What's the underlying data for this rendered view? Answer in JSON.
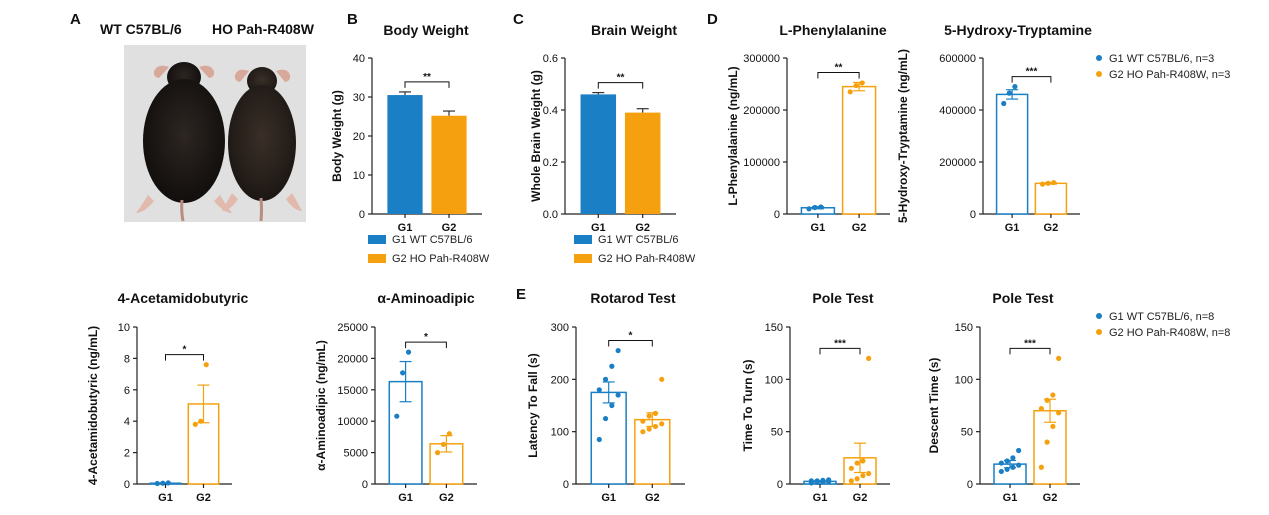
{
  "colors": {
    "g1": "#1a7fc4",
    "g2": "#f5a10f",
    "axis": "#222222"
  },
  "panel_labels": {
    "a": "A",
    "b": "B",
    "c": "C",
    "d": "D",
    "e": "E"
  },
  "photo": {
    "left_caption": "WT C57BL/6",
    "right_caption": "HO Pah-R408W"
  },
  "legends": {
    "b": [
      "G1 WT C57BL/6",
      "G2 HO Pah-R408W"
    ],
    "c": [
      "G1 WT C57BL/6",
      "G2 HO Pah-R408W"
    ],
    "d": [
      "G1 WT C57BL/6, n=3",
      "G2 HO Pah-R408W, n=3"
    ],
    "e": [
      "G1 WT C57BL/6, n=8",
      "G2 HO Pah-R408W, n=8"
    ]
  },
  "chart_data": [
    {
      "type": "bar",
      "style": "solid",
      "title": "Body Weight",
      "ylabel": "Body Weight (g)",
      "categories": [
        "G1",
        "G2"
      ],
      "values": [
        30.5,
        25.2
      ],
      "errors": [
        0.8,
        1.2
      ],
      "ylim": [
        0,
        40
      ],
      "yticks": [
        "0",
        "10",
        "20",
        "30",
        "40"
      ],
      "significance": "**",
      "points": [
        [],
        []
      ]
    },
    {
      "type": "bar",
      "style": "solid",
      "title": "Brain Weight",
      "ylabel": "Whole Brain Weight (g)",
      "categories": [
        "G1",
        "G2"
      ],
      "values": [
        0.46,
        0.39
      ],
      "errors": [
        0.007,
        0.015
      ],
      "ylim": [
        0,
        0.6
      ],
      "yticks": [
        "0.0",
        "0.2",
        "0.4",
        "0.6"
      ],
      "significance": "**",
      "points": [
        [],
        []
      ]
    },
    {
      "type": "bar",
      "style": "hollow",
      "title": "L-Phenylalanine",
      "ylabel": "L-Phenylalanine (ng/mL)",
      "categories": [
        "G1",
        "G2"
      ],
      "values": [
        12000,
        245000
      ],
      "errors": [
        2000,
        8000
      ],
      "ylim": [
        0,
        300000
      ],
      "yticks": [
        "0",
        "100000",
        "200000",
        "300000"
      ],
      "significance": "**",
      "points": [
        [
          10000,
          12500,
          13500
        ],
        [
          235000,
          247000,
          252000
        ]
      ]
    },
    {
      "type": "bar",
      "style": "hollow",
      "title": "5-Hydroxy-Tryptamine",
      "ylabel": "5-Hydroxy-Tryptamine (ng/mL)",
      "categories": [
        "G1",
        "G2"
      ],
      "values": [
        460000,
        118000
      ],
      "errors": [
        18000,
        3000
      ],
      "ylim": [
        0,
        600000
      ],
      "yticks": [
        "0",
        "200000",
        "400000",
        "600000"
      ],
      "significance": "***",
      "points": [
        [
          425000,
          465000,
          490000
        ],
        [
          115000,
          118000,
          121000
        ]
      ]
    },
    {
      "type": "bar",
      "style": "hollow",
      "title": "4-Acetamidobutyric",
      "ylabel": "4-Acetamidobutyric (ng/mL)",
      "categories": [
        "G1",
        "G2"
      ],
      "values": [
        0.05,
        5.1
      ],
      "errors": [
        0.02,
        1.2
      ],
      "ylim": [
        0,
        10
      ],
      "yticks": [
        "0",
        "2",
        "4",
        "6",
        "8",
        "10"
      ],
      "significance": "*",
      "points": [
        [
          0.03,
          0.05,
          0.07
        ],
        [
          3.8,
          4.0,
          7.6
        ]
      ]
    },
    {
      "type": "bar",
      "style": "hollow",
      "title": "α-Aminoadipic",
      "ylabel": "α-Aminoadipic (ng/mL)",
      "categories": [
        "G1",
        "G2"
      ],
      "values": [
        16300,
        6400
      ],
      "errors": [
        3200,
        1300
      ],
      "ylim": [
        0,
        25000
      ],
      "yticks": [
        "0",
        "5000",
        "10000",
        "15000",
        "20000",
        "25000"
      ],
      "significance": "*",
      "points": [
        [
          10800,
          17700,
          21000
        ],
        [
          5000,
          6300,
          8000
        ]
      ]
    },
    {
      "type": "bar",
      "style": "hollow",
      "title": "Rotarod Test",
      "ylabel": "Latency To Fall (s)",
      "categories": [
        "G1",
        "G2"
      ],
      "values": [
        175,
        123
      ],
      "errors": [
        20,
        13
      ],
      "ylim": [
        0,
        300
      ],
      "yticks": [
        "0",
        "100",
        "200",
        "300"
      ],
      "significance": "*",
      "points": [
        [
          85,
          125,
          150,
          170,
          180,
          200,
          225,
          255
        ],
        [
          100,
          105,
          110,
          115,
          120,
          130,
          135,
          200
        ]
      ]
    },
    {
      "type": "bar",
      "style": "hollow",
      "title": "Pole Test",
      "ylabel": "Time To Turn (s)",
      "categories": [
        "G1",
        "G2"
      ],
      "values": [
        2.5,
        25
      ],
      "errors": [
        0.6,
        14
      ],
      "ylim": [
        0,
        150
      ],
      "yticks": [
        "0",
        "50",
        "100",
        "150"
      ],
      "significance": "***",
      "points": [
        [
          1,
          1.5,
          2,
          2,
          3,
          3,
          3.5,
          4
        ],
        [
          3,
          5,
          8,
          10,
          15,
          20,
          22,
          120
        ]
      ]
    },
    {
      "type": "bar",
      "style": "hollow",
      "title": "Pole Test",
      "ylabel": "Descent Time (s)",
      "categories": [
        "G1",
        "G2"
      ],
      "values": [
        19,
        70
      ],
      "errors": [
        3.5,
        11
      ],
      "ylim": [
        0,
        150
      ],
      "yticks": [
        "0",
        "50",
        "100",
        "150"
      ],
      "significance": "***",
      "points": [
        [
          12,
          14,
          16,
          18,
          20,
          22,
          25,
          32
        ],
        [
          16,
          40,
          55,
          68,
          72,
          80,
          85,
          120
        ]
      ]
    }
  ]
}
